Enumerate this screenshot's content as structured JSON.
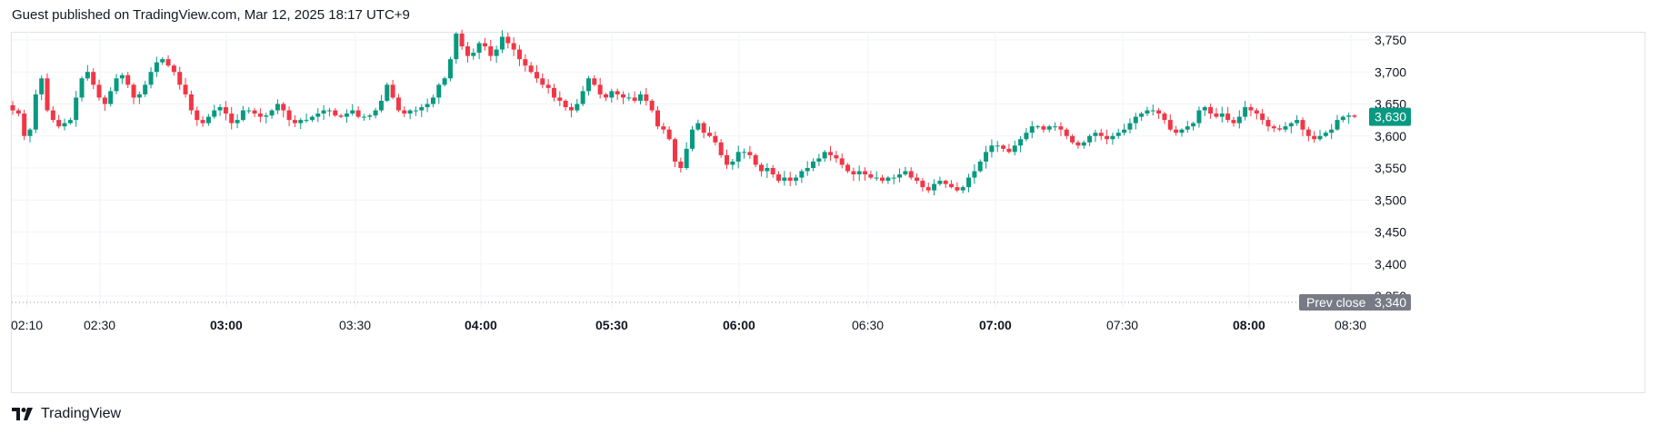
{
  "header": {
    "text": "Guest published on TradingView.com, Mar 12, 2025 18:17 UTC+9"
  },
  "footer": {
    "brand": "TradingView",
    "logo_icon": "tradingview-logo-icon"
  },
  "colors": {
    "up": "#089981",
    "down": "#f23645",
    "grid": "#f0f3fa",
    "prev_close_badge": "#787b86",
    "last_price_badge": "#089981"
  },
  "chart_data": {
    "type": "candlestick",
    "y_ticks": [
      "3,750",
      "3,700",
      "3,650",
      "3,600",
      "3,550",
      "3,500",
      "3,450",
      "3,400",
      "3,350"
    ],
    "y_tick_values": [
      3750,
      3700,
      3650,
      3600,
      3550,
      3500,
      3450,
      3400,
      3350
    ],
    "ylim": [
      3325,
      3775
    ],
    "x_ticks": [
      {
        "label": "02:10",
        "bold": false
      },
      {
        "label": "02:30",
        "bold": false
      },
      {
        "label": "03:00",
        "bold": true
      },
      {
        "label": "03:30",
        "bold": false
      },
      {
        "label": "04:00",
        "bold": true
      },
      {
        "label": "05:30",
        "bold": true
      },
      {
        "label": "06:00",
        "bold": true
      },
      {
        "label": "06:30",
        "bold": false
      },
      {
        "label": "07:00",
        "bold": true
      },
      {
        "label": "07:30",
        "bold": false
      },
      {
        "label": "08:00",
        "bold": true
      },
      {
        "label": "08:30",
        "bold": false
      }
    ],
    "prev_close": {
      "label": "Prev close",
      "value_label": "3,340",
      "value": 3340
    },
    "last_price": {
      "value_label": "3,630",
      "value": 3630
    },
    "close_path": [
      3640,
      3635,
      3600,
      3610,
      3665,
      3690,
      3640,
      3625,
      3615,
      3620,
      3625,
      3660,
      3690,
      3700,
      3680,
      3660,
      3650,
      3670,
      3690,
      3695,
      3680,
      3660,
      3665,
      3680,
      3700,
      3715,
      3720,
      3710,
      3700,
      3680,
      3665,
      3640,
      3625,
      3620,
      3630,
      3640,
      3645,
      3635,
      3620,
      3625,
      3640,
      3640,
      3635,
      3630,
      3632,
      3640,
      3650,
      3640,
      3625,
      3620,
      3625,
      3625,
      3630,
      3635,
      3640,
      3640,
      3632,
      3630,
      3635,
      3640,
      3630,
      3630,
      3632,
      3640,
      3655,
      3680,
      3660,
      3640,
      3635,
      3640,
      3640,
      3645,
      3650,
      3660,
      3680,
      3690,
      3720,
      3760,
      3740,
      3725,
      3730,
      3745,
      3740,
      3725,
      3735,
      3755,
      3745,
      3735,
      3720,
      3710,
      3700,
      3690,
      3680,
      3675,
      3660,
      3655,
      3645,
      3640,
      3650,
      3670,
      3690,
      3680,
      3665,
      3660,
      3670,
      3665,
      3660,
      3660,
      3655,
      3665,
      3655,
      3640,
      3615,
      3610,
      3595,
      3560,
      3550,
      3580,
      3610,
      3620,
      3605,
      3600,
      3590,
      3570,
      3555,
      3560,
      3575,
      3575,
      3570,
      3555,
      3545,
      3550,
      3540,
      3530,
      3535,
      3530,
      3535,
      3545,
      3550,
      3560,
      3565,
      3575,
      3570,
      3565,
      3555,
      3545,
      3540,
      3545,
      3540,
      3535,
      3535,
      3530,
      3535,
      3535,
      3540,
      3545,
      3535,
      3530,
      3520,
      3515,
      3525,
      3530,
      3525,
      3520,
      3515,
      3520,
      3535,
      3545,
      3560,
      3575,
      3585,
      3585,
      3580,
      3575,
      3585,
      3595,
      3605,
      3615,
      3615,
      3610,
      3615,
      3615,
      3610,
      3600,
      3590,
      3585,
      3590,
      3600,
      3605,
      3600,
      3595,
      3600,
      3605,
      3610,
      3620,
      3630,
      3635,
      3640,
      3640,
      3635,
      3625,
      3610,
      3605,
      3610,
      3615,
      3620,
      3640,
      3645,
      3635,
      3630,
      3635,
      3625,
      3620,
      3630,
      3645,
      3640,
      3635,
      3625,
      3615,
      3612,
      3610,
      3615,
      3620,
      3625,
      3610,
      3600,
      3595,
      3600,
      3605,
      3610,
      3625,
      3630,
      3632,
      3630
    ]
  }
}
